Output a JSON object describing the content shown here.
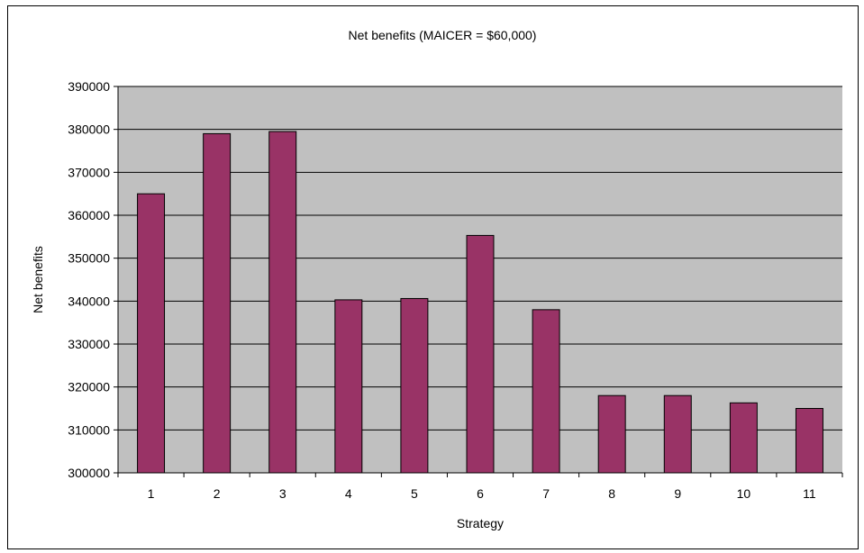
{
  "chart_data": {
    "type": "bar",
    "title": "Net benefits (MAICER = $60,000)",
    "xlabel": "Strategy",
    "ylabel": "Net benefits",
    "categories": [
      "1",
      "2",
      "3",
      "4",
      "5",
      "6",
      "7",
      "8",
      "9",
      "10",
      "11"
    ],
    "series": [
      {
        "values": [
          365000,
          379000,
          379500,
          340300,
          340600,
          355300,
          338000,
          318000,
          318000,
          316300,
          315000
        ]
      }
    ],
    "ylim": [
      300000,
      390000
    ],
    "yticks": [
      "300000",
      "310000",
      "320000",
      "330000",
      "340000",
      "350000",
      "360000",
      "370000",
      "380000",
      "390000"
    ],
    "grid": true,
    "legend": "none",
    "colors": {
      "bar": "#993366",
      "plot_background": "#c0c0c0",
      "gridline": "#000000"
    }
  }
}
